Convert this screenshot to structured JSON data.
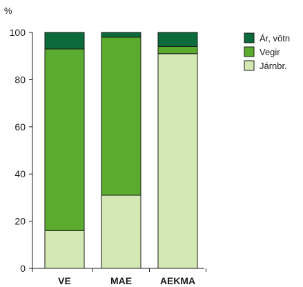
{
  "chart_data": {
    "type": "bar",
    "stacked": true,
    "ylabel": "%",
    "ylim": [
      0,
      100
    ],
    "yticks": [
      0,
      20,
      40,
      60,
      80,
      100
    ],
    "grid": false,
    "legend_position": "top-right",
    "categories": [
      "VE",
      "MAE",
      "AEKMA"
    ],
    "series": [
      {
        "name": "Járnbr.",
        "color": "#d4e8b4",
        "values": [
          16,
          31,
          91
        ]
      },
      {
        "name": "Vegir",
        "color": "#5aab2e",
        "values": [
          77,
          67,
          3
        ]
      },
      {
        "name": "Ár, vötn",
        "color": "#0b6b3a",
        "values": [
          7,
          2,
          6
        ]
      }
    ],
    "legend_order": [
      "Ár, vötn",
      "Vegir",
      "Járnbr."
    ]
  }
}
